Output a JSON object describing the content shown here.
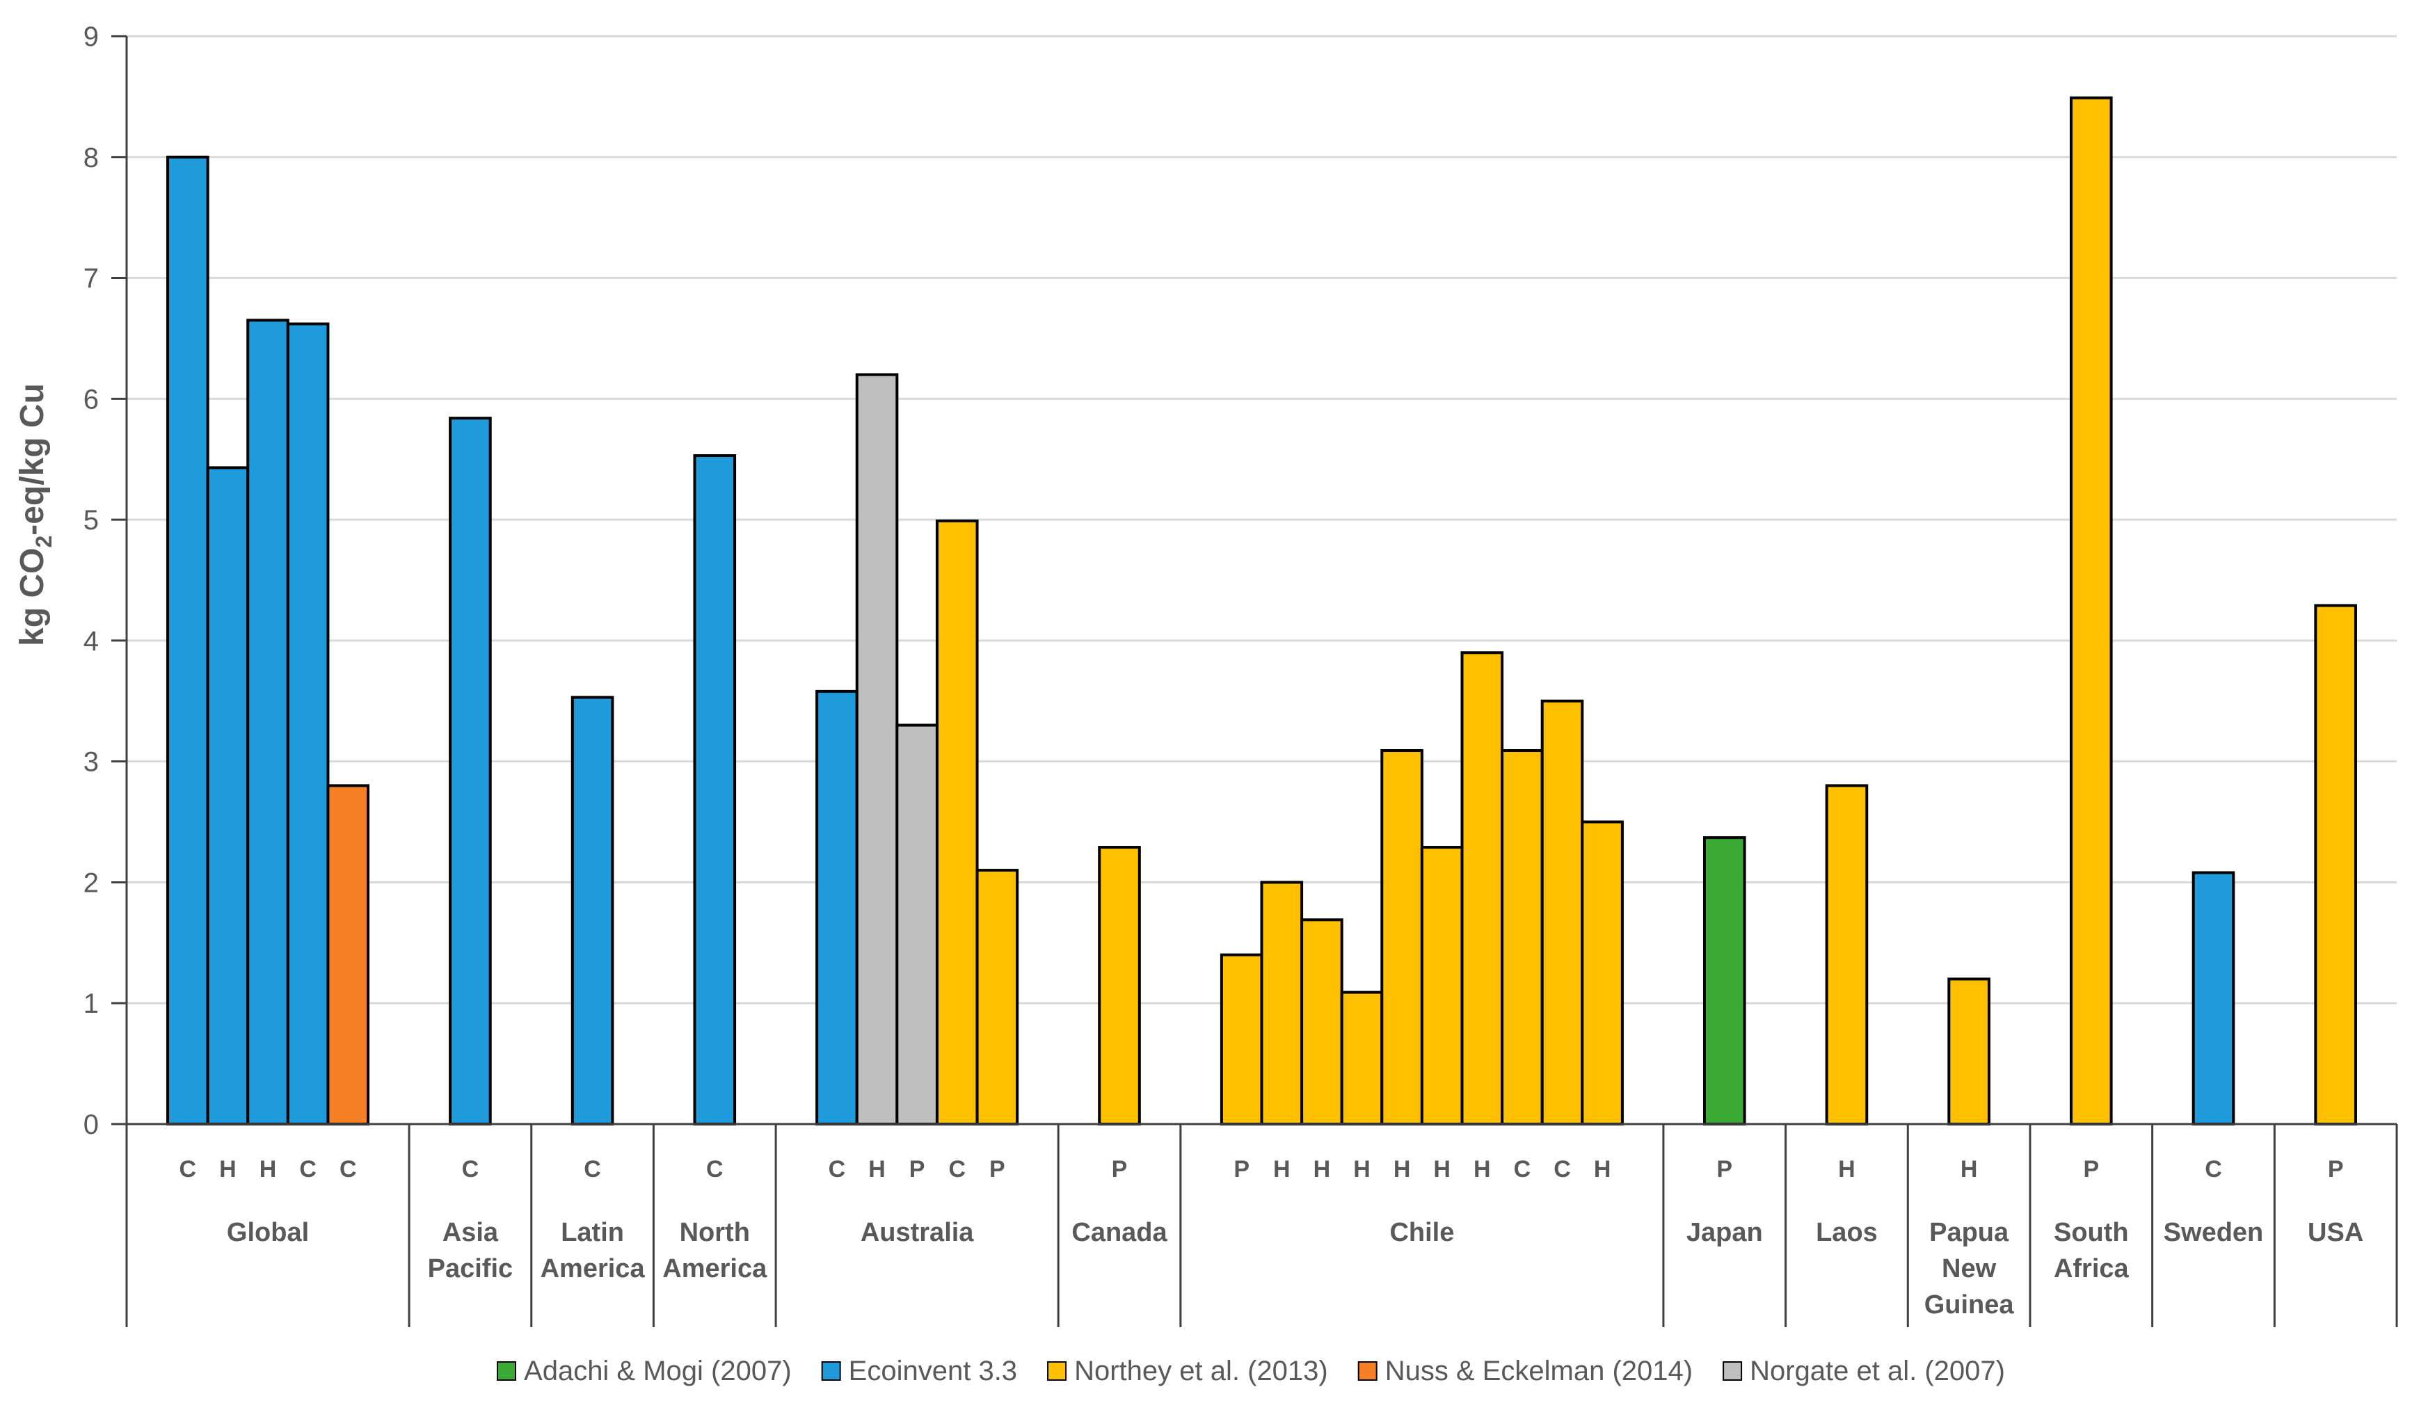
{
  "chart_data": {
    "type": "bar",
    "title": "",
    "ylabel": "kg CO2-eq/kg Cu",
    "ylabel_parts": {
      "pre": "kg CO",
      "sub": "2",
      "post": "-eq/kg Cu"
    },
    "xlabel": "",
    "ylim": [
      0,
      9
    ],
    "yticks": [
      "0",
      "1",
      "2",
      "3",
      "4",
      "5",
      "6",
      "7",
      "8",
      "9"
    ],
    "grid": true,
    "legend_position": "bottom",
    "colors": {
      "adachi": "#3AAA35",
      "ecoinvent": "#1F9BDB",
      "northey": "#FFC000",
      "nuss": "#F58025",
      "norgate": "#BFBFBF"
    },
    "legend": [
      {
        "key": "adachi",
        "label": "Adachi & Mogi (2007)"
      },
      {
        "key": "ecoinvent",
        "label": "Ecoinvent 3.3"
      },
      {
        "key": "northey",
        "label": "Northey et al. (2013)"
      },
      {
        "key": "nuss",
        "label": "Nuss & Eckelman (2014)"
      },
      {
        "key": "norgate",
        "label": "Norgate et al. (2007)"
      }
    ],
    "groups": [
      {
        "region": [
          "Global"
        ],
        "bars": [
          {
            "code": "C",
            "value": 8.0,
            "source": "ecoinvent"
          },
          {
            "code": "H",
            "value": 5.43,
            "source": "ecoinvent"
          },
          {
            "code": "H",
            "value": 6.65,
            "source": "ecoinvent"
          },
          {
            "code": "C",
            "value": 6.62,
            "source": "ecoinvent"
          },
          {
            "code": "C",
            "value": 2.8,
            "source": "nuss"
          }
        ]
      },
      {
        "region": [
          "Asia",
          "Pacific"
        ],
        "bars": [
          {
            "code": "C",
            "value": 5.84,
            "source": "ecoinvent"
          }
        ]
      },
      {
        "region": [
          "Latin",
          "America"
        ],
        "bars": [
          {
            "code": "C",
            "value": 3.53,
            "source": "ecoinvent"
          }
        ]
      },
      {
        "region": [
          "North",
          "America"
        ],
        "bars": [
          {
            "code": "C",
            "value": 5.53,
            "source": "ecoinvent"
          }
        ]
      },
      {
        "region": [
          "Australia"
        ],
        "bars": [
          {
            "code": "C",
            "value": 3.58,
            "source": "ecoinvent"
          },
          {
            "code": "H",
            "value": 6.2,
            "source": "norgate"
          },
          {
            "code": "P",
            "value": 3.3,
            "source": "norgate"
          },
          {
            "code": "C",
            "value": 4.99,
            "source": "northey"
          },
          {
            "code": "P",
            "value": 2.1,
            "source": "northey"
          }
        ]
      },
      {
        "region": [
          "Canada"
        ],
        "bars": [
          {
            "code": "P",
            "value": 2.29,
            "source": "northey"
          }
        ]
      },
      {
        "region": [
          "Chile"
        ],
        "bars": [
          {
            "code": "P",
            "value": 1.4,
            "source": "northey"
          },
          {
            "code": "H",
            "value": 2.0,
            "source": "northey"
          },
          {
            "code": "H",
            "value": 1.69,
            "source": "northey"
          },
          {
            "code": "H",
            "value": 1.09,
            "source": "northey"
          },
          {
            "code": "H",
            "value": 3.09,
            "source": "northey"
          },
          {
            "code": "H",
            "value": 2.29,
            "source": "northey"
          },
          {
            "code": "H",
            "value": 3.9,
            "source": "northey"
          },
          {
            "code": "C",
            "value": 3.09,
            "source": "northey"
          },
          {
            "code": "C",
            "value": 3.5,
            "source": "northey"
          },
          {
            "code": "H",
            "value": 2.5,
            "source": "northey"
          }
        ]
      },
      {
        "region": [
          "Japan"
        ],
        "bars": [
          {
            "code": "P",
            "value": 2.37,
            "source": "adachi"
          }
        ]
      },
      {
        "region": [
          "Laos"
        ],
        "bars": [
          {
            "code": "H",
            "value": 2.8,
            "source": "northey"
          }
        ]
      },
      {
        "region": [
          "Papua",
          "New",
          "Guinea"
        ],
        "bars": [
          {
            "code": "H",
            "value": 1.2,
            "source": "northey"
          }
        ]
      },
      {
        "region": [
          "South",
          "Africa"
        ],
        "bars": [
          {
            "code": "P",
            "value": 8.49,
            "source": "northey"
          }
        ]
      },
      {
        "region": [
          "Sweden"
        ],
        "bars": [
          {
            "code": "C",
            "value": 2.08,
            "source": "ecoinvent"
          }
        ]
      },
      {
        "region": [
          "USA"
        ],
        "bars": [
          {
            "code": "P",
            "value": 4.29,
            "source": "northey"
          }
        ]
      }
    ]
  }
}
